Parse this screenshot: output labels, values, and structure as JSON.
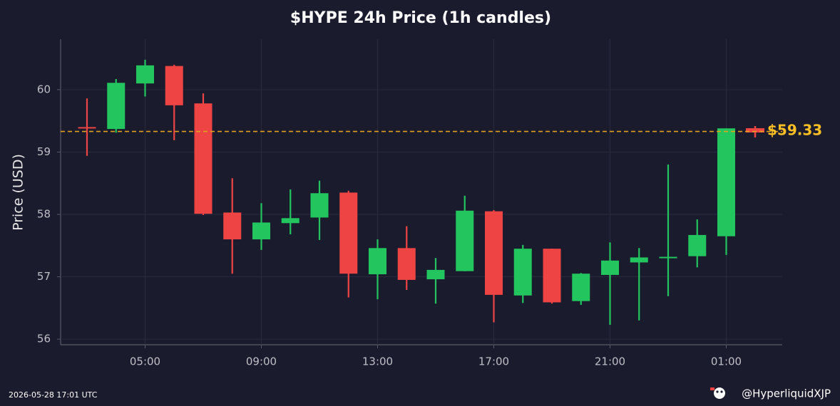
{
  "chart_data": {
    "type": "candlestick",
    "title": "$HYPE 24h Price (1h candles)",
    "y_label": "Price (USD)",
    "categories": [
      null,
      null,
      "05:00",
      null,
      null,
      null,
      "09:00",
      null,
      null,
      null,
      "13:00",
      null,
      null,
      null,
      "17:00",
      null,
      null,
      null,
      "21:00",
      null,
      null,
      null,
      "01:00"
    ],
    "open": [
      59.4,
      59.37,
      60.1,
      60.38,
      59.78,
      58.03,
      57.6,
      57.86,
      57.95,
      58.35,
      57.04,
      57.46,
      56.96,
      57.09,
      58.05,
      56.7,
      57.45,
      56.61,
      57.03,
      57.23,
      57.3,
      57.33,
      57.65
    ],
    "high": [
      59.86,
      60.17,
      60.48,
      60.4,
      59.94,
      58.58,
      58.18,
      58.4,
      58.54,
      58.38,
      57.6,
      57.81,
      57.3,
      58.3,
      58.07,
      57.51,
      57.45,
      57.06,
      57.55,
      57.46,
      58.8,
      57.92,
      59.38
    ],
    "low": [
      58.94,
      59.31,
      59.89,
      59.19,
      57.99,
      57.05,
      57.43,
      57.68,
      57.59,
      56.67,
      56.64,
      56.79,
      56.57,
      57.09,
      56.27,
      56.58,
      56.57,
      56.55,
      56.23,
      56.3,
      56.69,
      57.15,
      57.35
    ],
    "close": [
      59.38,
      60.11,
      60.39,
      59.75,
      58.01,
      57.6,
      57.87,
      57.94,
      58.34,
      57.05,
      57.46,
      56.95,
      57.11,
      58.06,
      56.71,
      57.45,
      56.59,
      57.05,
      57.26,
      57.31,
      57.32,
      57.67,
      59.38
    ],
    "up_color": "#22c55e",
    "down_color": "#ef4444",
    "current_price": {
      "value": 59.33,
      "label": "$59.33"
    },
    "current_price_color": "#e0a21c",
    "ylim": [
      55.91,
      60.81
    ],
    "yticks": [
      56,
      57,
      58,
      59,
      60
    ],
    "grid": true
  },
  "footer": {
    "timestamp": "2026-05-28 17:01 UTC",
    "handle": "@HyperliquidXJP"
  }
}
